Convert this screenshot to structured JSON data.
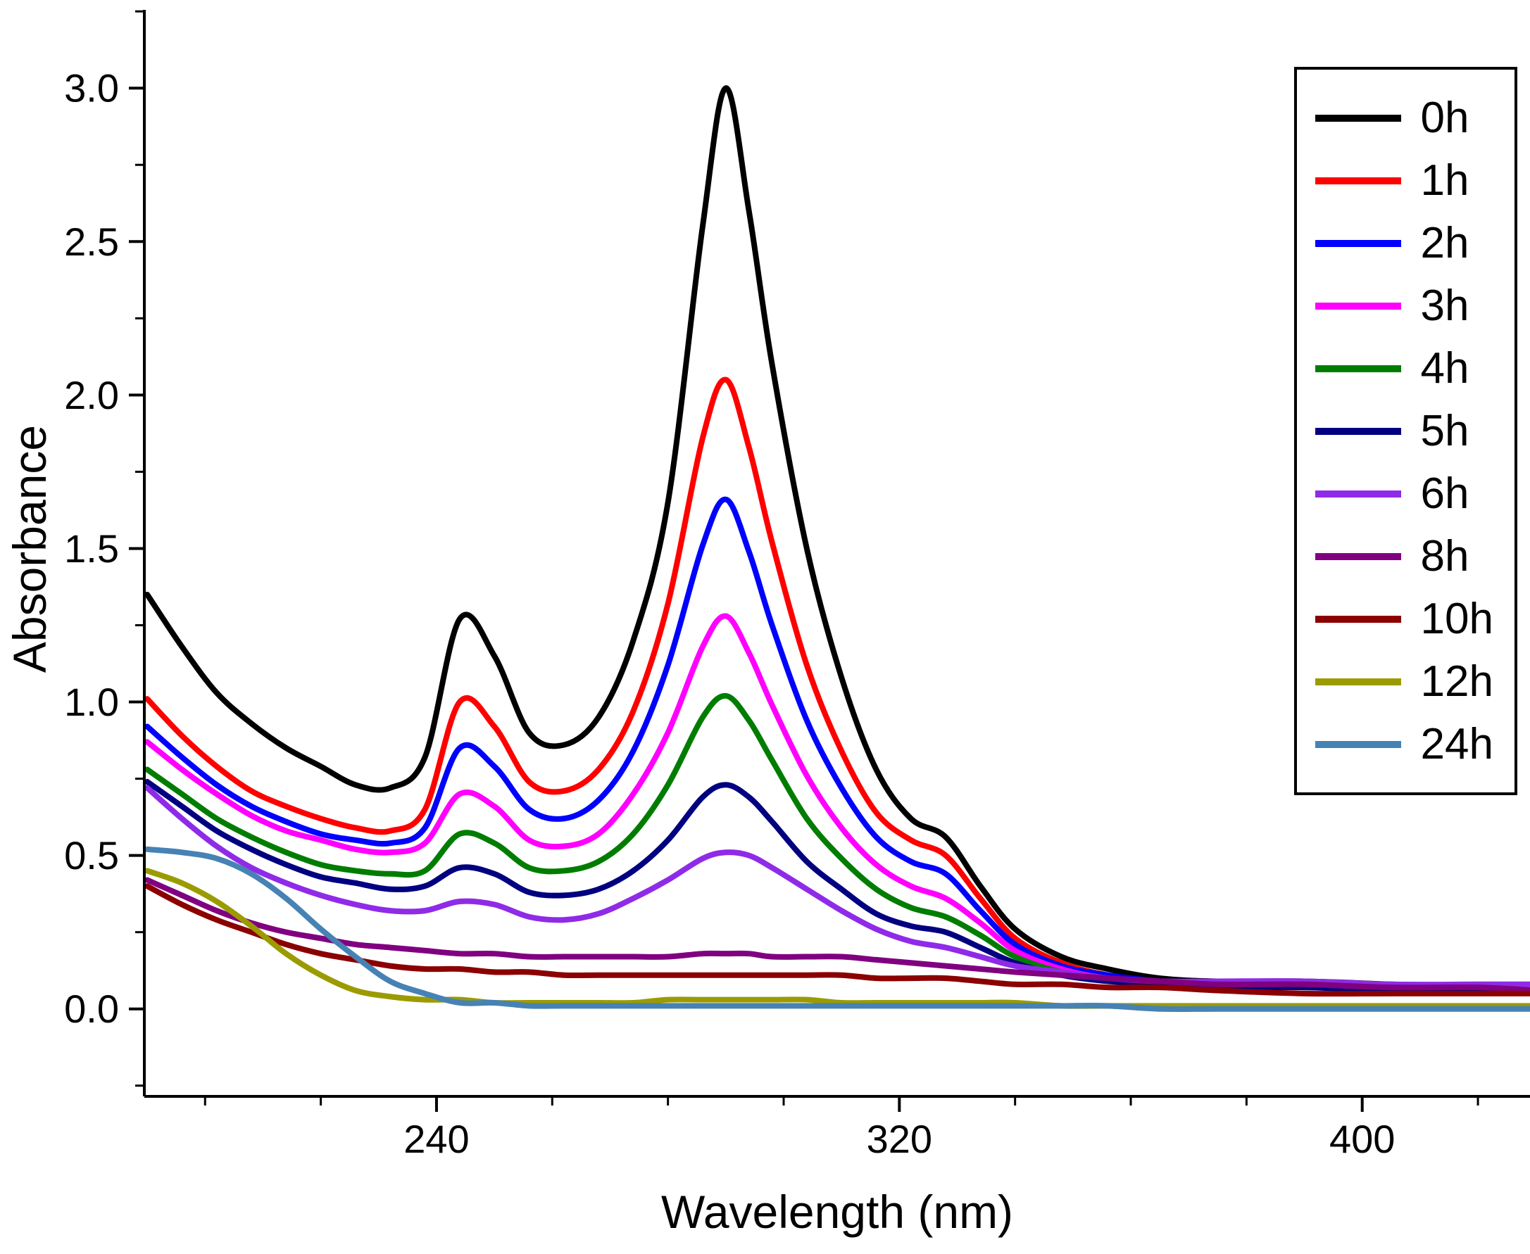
{
  "chart_data": {
    "type": "line",
    "title": "",
    "xlabel": "Wavelength (nm)",
    "ylabel": "Absorbance",
    "xlim": [
      189.5,
      429
    ],
    "ylim": [
      -0.285,
      3.255
    ],
    "x_ticks": [
      240,
      320,
      400
    ],
    "x_minor_ticks": [
      200,
      220,
      260,
      280,
      300,
      340,
      360,
      380,
      420
    ],
    "y_ticks": [
      0.0,
      0.5,
      1.0,
      1.5,
      2.0,
      2.5,
      3.0
    ],
    "y_minor_ticks": [
      -0.25,
      0.25,
      0.75,
      1.25,
      1.75,
      2.25,
      2.75,
      3.25
    ],
    "grid": false,
    "legend_position": "top-right",
    "axis_color": "#000000",
    "x": [
      190,
      196,
      202,
      208,
      214,
      220,
      226,
      232,
      238,
      244,
      250,
      256,
      262,
      268,
      274,
      280,
      286,
      290,
      294,
      298,
      304,
      310,
      316,
      322,
      328,
      334,
      340,
      348,
      356,
      365,
      375,
      390,
      405,
      420,
      430
    ],
    "series": [
      {
        "name": "0h",
        "color": "#000000",
        "values": [
          1.35,
          1.18,
          1.03,
          0.93,
          0.85,
          0.79,
          0.73,
          0.72,
          0.82,
          1.27,
          1.15,
          0.9,
          0.86,
          0.95,
          1.2,
          1.65,
          2.55,
          3.0,
          2.6,
          2.1,
          1.5,
          1.08,
          0.78,
          0.62,
          0.56,
          0.4,
          0.26,
          0.17,
          0.13,
          0.1,
          0.09,
          0.09,
          0.08,
          0.07,
          0.07
        ]
      },
      {
        "name": "1h",
        "color": "#ff0000",
        "values": [
          1.01,
          0.89,
          0.79,
          0.71,
          0.66,
          0.62,
          0.59,
          0.58,
          0.65,
          1.0,
          0.92,
          0.74,
          0.71,
          0.78,
          0.97,
          1.32,
          1.86,
          2.05,
          1.83,
          1.52,
          1.12,
          0.84,
          0.64,
          0.55,
          0.5,
          0.36,
          0.23,
          0.15,
          0.11,
          0.09,
          0.08,
          0.08,
          0.07,
          0.06,
          0.06
        ]
      },
      {
        "name": "2h",
        "color": "#0000ff",
        "values": [
          0.92,
          0.82,
          0.73,
          0.66,
          0.61,
          0.57,
          0.55,
          0.54,
          0.59,
          0.85,
          0.79,
          0.65,
          0.62,
          0.68,
          0.84,
          1.12,
          1.51,
          1.66,
          1.49,
          1.25,
          0.94,
          0.72,
          0.56,
          0.48,
          0.44,
          0.32,
          0.21,
          0.14,
          0.11,
          0.09,
          0.08,
          0.08,
          0.07,
          0.06,
          0.06
        ]
      },
      {
        "name": "3h",
        "color": "#ff00ff",
        "values": [
          0.87,
          0.78,
          0.7,
          0.63,
          0.58,
          0.55,
          0.52,
          0.51,
          0.54,
          0.7,
          0.66,
          0.55,
          0.53,
          0.57,
          0.7,
          0.9,
          1.18,
          1.28,
          1.16,
          0.99,
          0.76,
          0.59,
          0.47,
          0.4,
          0.36,
          0.28,
          0.19,
          0.13,
          0.1,
          0.09,
          0.08,
          0.08,
          0.07,
          0.07,
          0.07
        ]
      },
      {
        "name": "4h",
        "color": "#007d00",
        "values": [
          0.78,
          0.7,
          0.62,
          0.56,
          0.51,
          0.47,
          0.45,
          0.44,
          0.45,
          0.57,
          0.54,
          0.46,
          0.45,
          0.48,
          0.57,
          0.73,
          0.95,
          1.02,
          0.94,
          0.81,
          0.62,
          0.49,
          0.39,
          0.33,
          0.3,
          0.24,
          0.17,
          0.12,
          0.1,
          0.08,
          0.08,
          0.07,
          0.07,
          0.06,
          0.06
        ]
      },
      {
        "name": "5h",
        "color": "#000080",
        "values": [
          0.74,
          0.66,
          0.58,
          0.52,
          0.47,
          0.43,
          0.41,
          0.39,
          0.4,
          0.46,
          0.44,
          0.38,
          0.37,
          0.39,
          0.45,
          0.55,
          0.69,
          0.73,
          0.69,
          0.61,
          0.48,
          0.39,
          0.31,
          0.27,
          0.25,
          0.2,
          0.15,
          0.11,
          0.09,
          0.08,
          0.07,
          0.07,
          0.06,
          0.06,
          0.06
        ]
      },
      {
        "name": "6h",
        "color": "#8f2be8",
        "values": [
          0.72,
          0.62,
          0.53,
          0.46,
          0.41,
          0.37,
          0.34,
          0.32,
          0.32,
          0.35,
          0.34,
          0.3,
          0.29,
          0.31,
          0.36,
          0.42,
          0.49,
          0.51,
          0.5,
          0.46,
          0.39,
          0.32,
          0.26,
          0.22,
          0.2,
          0.17,
          0.14,
          0.12,
          0.1,
          0.09,
          0.09,
          0.09,
          0.08,
          0.08,
          0.08
        ]
      },
      {
        "name": "8h",
        "color": "#800080",
        "values": [
          0.42,
          0.37,
          0.32,
          0.28,
          0.25,
          0.23,
          0.21,
          0.2,
          0.19,
          0.18,
          0.18,
          0.17,
          0.17,
          0.17,
          0.17,
          0.17,
          0.18,
          0.18,
          0.18,
          0.17,
          0.17,
          0.17,
          0.16,
          0.15,
          0.14,
          0.13,
          0.12,
          0.11,
          0.1,
          0.09,
          0.08,
          0.08,
          0.07,
          0.07,
          0.06
        ]
      },
      {
        "name": "10h",
        "color": "#8b0000",
        "values": [
          0.4,
          0.34,
          0.29,
          0.25,
          0.21,
          0.18,
          0.16,
          0.14,
          0.13,
          0.13,
          0.12,
          0.12,
          0.11,
          0.11,
          0.11,
          0.11,
          0.11,
          0.11,
          0.11,
          0.11,
          0.11,
          0.11,
          0.1,
          0.1,
          0.1,
          0.09,
          0.08,
          0.08,
          0.07,
          0.07,
          0.06,
          0.05,
          0.05,
          0.05,
          0.05
        ]
      },
      {
        "name": "12h",
        "color": "#9b9b00",
        "values": [
          0.45,
          0.41,
          0.35,
          0.27,
          0.18,
          0.11,
          0.06,
          0.04,
          0.03,
          0.03,
          0.02,
          0.02,
          0.02,
          0.02,
          0.02,
          0.03,
          0.03,
          0.03,
          0.03,
          0.03,
          0.03,
          0.02,
          0.02,
          0.02,
          0.02,
          0.02,
          0.02,
          0.01,
          0.01,
          0.01,
          0.01,
          0.01,
          0.01,
          0.01,
          0.01
        ]
      },
      {
        "name": "24h",
        "color": "#4682b4",
        "values": [
          0.52,
          0.51,
          0.49,
          0.44,
          0.36,
          0.26,
          0.17,
          0.09,
          0.05,
          0.02,
          0.02,
          0.01,
          0.01,
          0.01,
          0.01,
          0.01,
          0.01,
          0.01,
          0.01,
          0.01,
          0.01,
          0.01,
          0.01,
          0.01,
          0.01,
          0.01,
          0.01,
          0.01,
          0.01,
          0.0,
          0.0,
          0.0,
          0.0,
          0.0,
          0.0
        ]
      }
    ]
  }
}
